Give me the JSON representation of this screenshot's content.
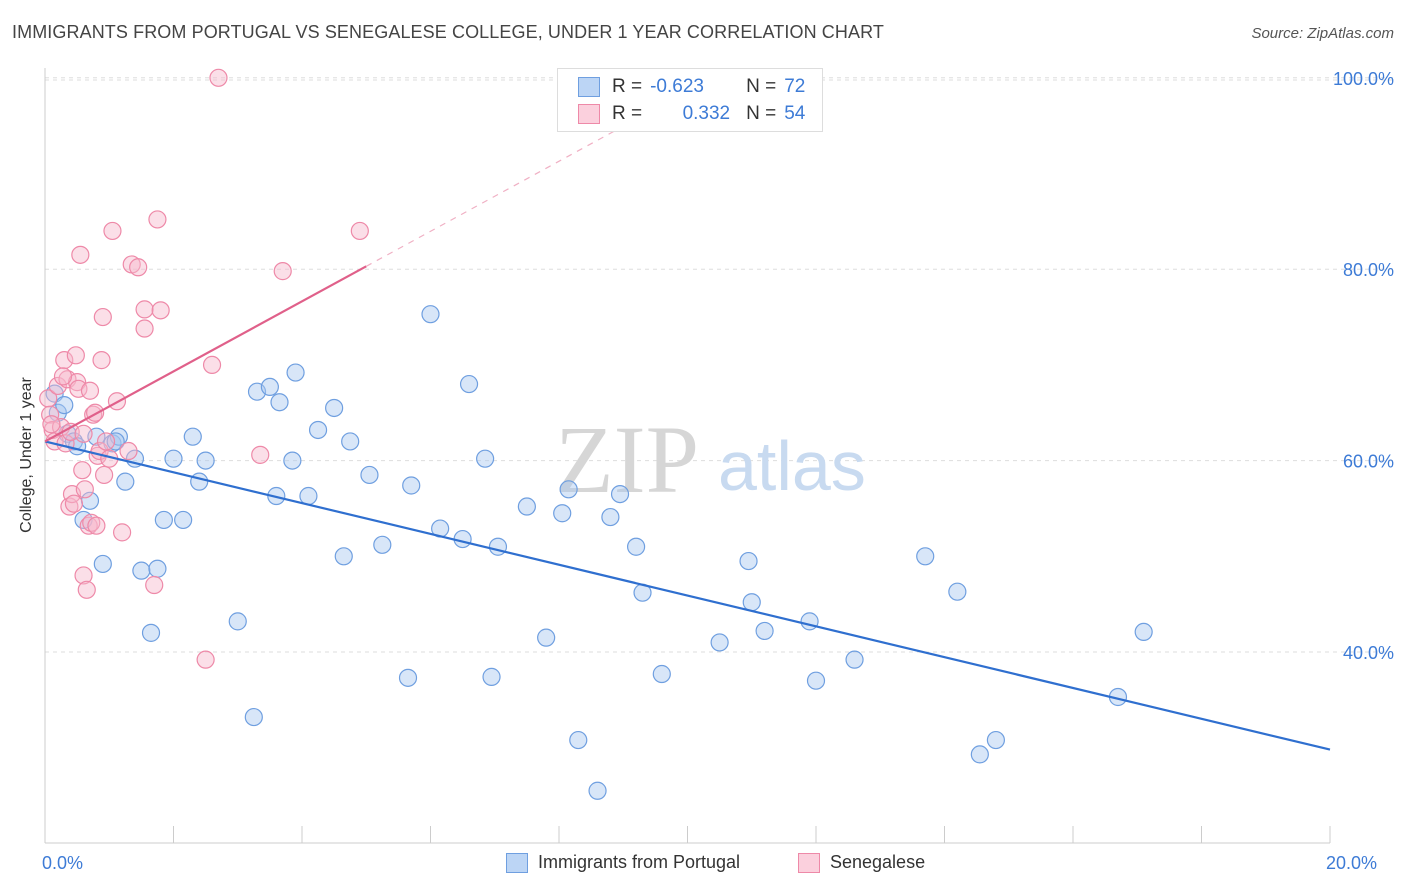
{
  "header": {
    "title": "IMMIGRANTS FROM PORTUGAL VS SENEGALESE COLLEGE, UNDER 1 YEAR CORRELATION CHART",
    "source": "Source: ZipAtlas.com"
  },
  "watermark": {
    "zip": "ZIP",
    "atlas": "atlas"
  },
  "legend_top": {
    "rows": [
      {
        "r_label": "R =",
        "r_value": "-0.623",
        "n_label": "N =",
        "n_value": "72"
      },
      {
        "r_label": "R =",
        "r_value": "0.332",
        "n_label": "N =",
        "n_value": "54"
      }
    ]
  },
  "colors": {
    "blue_fill": "#a9c8f0",
    "blue_stroke": "#6f9fe0",
    "blue_line": "#2f6fcf",
    "pink_fill": "#f7b8cc",
    "pink_stroke": "#ee89a8",
    "pink_line": "#e0608a",
    "tick_label": "#3d7bd6",
    "grid": "#dddddd"
  },
  "chart_data": {
    "type": "scatter",
    "title": "IMMIGRANTS FROM PORTUGAL VS SENEGALESE COLLEGE, UNDER 1 YEAR CORRELATION CHART",
    "ylabel": "College, Under 1 year",
    "xlabel": "",
    "xlim": [
      0,
      20
    ],
    "ylim": [
      20,
      102
    ],
    "x_tick_labels": [
      "0.0%",
      "20.0%"
    ],
    "y_ticks": [
      40,
      60,
      80,
      100
    ],
    "y_tick_labels": [
      "40.0%",
      "60.0%",
      "80.0%",
      "100.0%"
    ],
    "grid": "horizontal dashed",
    "legend_placement": "bottom",
    "series": [
      {
        "name": "Immigrants from Portugal",
        "color": "#6f9fe0",
        "r": -0.623,
        "n": 72,
        "trend": {
          "x": [
            0,
            20
          ],
          "y": [
            62.0,
            29.8
          ],
          "style": "solid"
        },
        "points": [
          [
            0.15,
            67.0
          ],
          [
            0.2,
            65.0
          ],
          [
            0.3,
            65.8
          ],
          [
            0.35,
            62.8
          ],
          [
            0.45,
            62.0
          ],
          [
            0.6,
            53.8
          ],
          [
            0.7,
            55.8
          ],
          [
            0.8,
            62.5
          ],
          [
            0.9,
            49.2
          ],
          [
            1.05,
            61.8
          ],
          [
            1.15,
            62.5
          ],
          [
            1.25,
            57.8
          ],
          [
            1.4,
            60.2
          ],
          [
            1.5,
            48.5
          ],
          [
            1.65,
            42.0
          ],
          [
            1.75,
            48.7
          ],
          [
            1.85,
            53.8
          ],
          [
            2.0,
            60.2
          ],
          [
            2.15,
            53.8
          ],
          [
            2.3,
            62.5
          ],
          [
            2.4,
            57.8
          ],
          [
            2.5,
            60.0
          ],
          [
            3.0,
            43.2
          ],
          [
            3.25,
            33.2
          ],
          [
            3.3,
            67.2
          ],
          [
            3.5,
            67.7
          ],
          [
            3.6,
            56.3
          ],
          [
            3.65,
            66.1
          ],
          [
            3.85,
            60.0
          ],
          [
            3.9,
            69.2
          ],
          [
            4.1,
            56.3
          ],
          [
            4.25,
            63.2
          ],
          [
            4.5,
            65.5
          ],
          [
            4.65,
            50.0
          ],
          [
            4.75,
            62.0
          ],
          [
            5.05,
            58.5
          ],
          [
            5.25,
            51.2
          ],
          [
            5.65,
            37.3
          ],
          [
            5.7,
            57.4
          ],
          [
            6.0,
            75.3
          ],
          [
            6.15,
            52.9
          ],
          [
            6.5,
            51.8
          ],
          [
            6.6,
            68.0
          ],
          [
            6.85,
            60.2
          ],
          [
            6.95,
            37.4
          ],
          [
            7.05,
            51.0
          ],
          [
            7.5,
            55.2
          ],
          [
            7.8,
            41.5
          ],
          [
            8.05,
            54.5
          ],
          [
            8.15,
            57.0
          ],
          [
            8.3,
            30.8
          ],
          [
            8.6,
            25.5
          ],
          [
            8.8,
            54.1
          ],
          [
            8.95,
            56.5
          ],
          [
            9.2,
            51.0
          ],
          [
            9.3,
            46.2
          ],
          [
            9.6,
            37.7
          ],
          [
            10.5,
            41.0
          ],
          [
            10.95,
            49.5
          ],
          [
            11.0,
            45.2
          ],
          [
            11.2,
            42.2
          ],
          [
            11.9,
            43.2
          ],
          [
            12.0,
            37.0
          ],
          [
            12.6,
            39.2
          ],
          [
            13.7,
            50.0
          ],
          [
            14.2,
            46.3
          ],
          [
            14.55,
            29.3
          ],
          [
            14.8,
            30.8
          ],
          [
            16.7,
            35.3
          ],
          [
            17.1,
            42.1
          ],
          [
            1.1,
            62.0
          ],
          [
            0.5,
            61.5
          ]
        ]
      },
      {
        "name": "Senegalese",
        "color": "#ee89a8",
        "r": 0.332,
        "n": 54,
        "trend": {
          "x": [
            0,
            5
          ],
          "y": [
            62.0,
            80.3
          ],
          "style": "solid",
          "extension": {
            "x": [
              5,
              10
            ],
            "y": [
              80.3,
              98.6
            ],
            "style": "dashed"
          }
        },
        "points": [
          [
            0.05,
            66.5
          ],
          [
            0.08,
            64.8
          ],
          [
            0.12,
            63.2
          ],
          [
            0.15,
            62.0
          ],
          [
            0.2,
            67.8
          ],
          [
            0.25,
            63.5
          ],
          [
            0.3,
            70.5
          ],
          [
            0.32,
            61.8
          ],
          [
            0.35,
            68.5
          ],
          [
            0.38,
            55.2
          ],
          [
            0.4,
            63.0
          ],
          [
            0.42,
            56.5
          ],
          [
            0.45,
            55.5
          ],
          [
            0.48,
            71.0
          ],
          [
            0.5,
            68.2
          ],
          [
            0.52,
            67.5
          ],
          [
            0.55,
            81.5
          ],
          [
            0.58,
            59.0
          ],
          [
            0.6,
            48.0
          ],
          [
            0.62,
            57.0
          ],
          [
            0.65,
            46.5
          ],
          [
            0.68,
            53.2
          ],
          [
            0.7,
            67.3
          ],
          [
            0.72,
            53.5
          ],
          [
            0.75,
            64.8
          ],
          [
            0.78,
            65.0
          ],
          [
            0.8,
            53.2
          ],
          [
            0.82,
            60.5
          ],
          [
            0.85,
            61.0
          ],
          [
            0.88,
            70.5
          ],
          [
            0.9,
            75.0
          ],
          [
            0.92,
            58.5
          ],
          [
            0.95,
            62.0
          ],
          [
            1.0,
            60.2
          ],
          [
            1.05,
            84.0
          ],
          [
            1.12,
            66.2
          ],
          [
            1.2,
            52.5
          ],
          [
            1.3,
            61.0
          ],
          [
            1.35,
            80.5
          ],
          [
            1.45,
            80.2
          ],
          [
            1.55,
            75.8
          ],
          [
            1.55,
            73.8
          ],
          [
            1.7,
            47.0
          ],
          [
            1.75,
            85.2
          ],
          [
            1.8,
            75.7
          ],
          [
            2.5,
            39.2
          ],
          [
            2.6,
            70.0
          ],
          [
            2.7,
            100.0
          ],
          [
            3.35,
            60.6
          ],
          [
            3.7,
            79.8
          ],
          [
            4.9,
            84.0
          ],
          [
            0.1,
            63.8
          ],
          [
            0.28,
            68.8
          ],
          [
            0.6,
            62.8
          ]
        ]
      }
    ]
  },
  "bottom_legend": [
    {
      "label": "Immigrants from Portugal"
    },
    {
      "label": "Senegalese"
    }
  ]
}
